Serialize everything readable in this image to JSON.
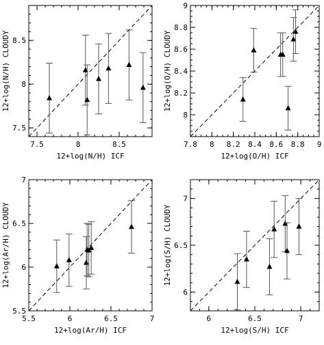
{
  "chart_data": [
    {
      "type": "scatter",
      "xlabel": "12+log(N/H) ICF",
      "ylabel": "12+log(N/H) CLOUDY",
      "xlim": [
        7.4,
        8.9
      ],
      "ylim": [
        7.4,
        8.9
      ],
      "xticks": [
        7.5,
        8,
        8.5
      ],
      "yticks": [
        7.5,
        8,
        8.5
      ],
      "xtick_labels": [
        "7.5",
        "8",
        "8.5"
      ],
      "ytick_labels": [
        "7.5",
        "8",
        "8.5"
      ],
      "minor_step": 0.1,
      "reference_line": "y = x (dashed)",
      "points": [
        {
          "x": 7.65,
          "y": 7.84,
          "y_low": 7.44,
          "y_high": 8.24
        },
        {
          "x": 8.09,
          "y": 8.16,
          "y_low": 7.76,
          "y_high": 8.56
        },
        {
          "x": 8.11,
          "y": 7.82,
          "y_low": 7.42,
          "y_high": 8.22
        },
        {
          "x": 8.25,
          "y": 8.06,
          "y_low": 7.66,
          "y_high": 8.46
        },
        {
          "x": 8.37,
          "y": 8.18,
          "y_low": 7.78,
          "y_high": 8.58
        },
        {
          "x": 8.62,
          "y": 8.22,
          "y_low": 7.82,
          "y_high": 8.62
        },
        {
          "x": 8.79,
          "y": 7.96,
          "y_low": 7.56,
          "y_high": 8.36
        }
      ]
    },
    {
      "type": "scatter",
      "xlabel": "12+log(O/H) ICF",
      "ylabel": "12+log(O/H) CLOUDY",
      "xlim": [
        7.8,
        9
      ],
      "ylim": [
        7.8,
        9
      ],
      "xticks": [
        7.8,
        8,
        8.2,
        8.4,
        8.6,
        8.8,
        9
      ],
      "yticks": [
        8,
        8.2,
        8.4,
        8.6,
        8.8,
        9
      ],
      "xtick_labels": [
        "7.8",
        "8",
        "8.2",
        "8.4",
        "8.6",
        "8.8",
        "9"
      ],
      "ytick_labels": [
        "8",
        "8.2",
        "8.4",
        "8.6",
        "8.8",
        "9"
      ],
      "minor_step": 0.05,
      "reference_line": "y = x (dashed)",
      "points": [
        {
          "x": 8.29,
          "y": 8.14,
          "y_low": 7.94,
          "y_high": 8.34
        },
        {
          "x": 8.39,
          "y": 8.59,
          "y_low": 8.39,
          "y_high": 8.79
        },
        {
          "x": 8.64,
          "y": 8.55,
          "y_low": 8.35,
          "y_high": 8.75
        },
        {
          "x": 8.66,
          "y": 8.55,
          "y_low": 8.35,
          "y_high": 8.75
        },
        {
          "x": 8.71,
          "y": 8.06,
          "y_low": 7.86,
          "y_high": 8.26
        },
        {
          "x": 8.76,
          "y": 8.69,
          "y_low": 8.49,
          "y_high": 8.89
        },
        {
          "x": 8.78,
          "y": 8.76,
          "y_low": 8.56,
          "y_high": 8.96
        }
      ]
    },
    {
      "type": "scatter",
      "xlabel": "12+log(Ar/H) ICF",
      "ylabel": "12+log(Ar/H) CLOUDY",
      "xlim": [
        5.5,
        7
      ],
      "ylim": [
        5.5,
        7
      ],
      "xticks": [
        5.5,
        6,
        6.5,
        7
      ],
      "yticks": [
        5.5,
        6,
        6.5,
        7
      ],
      "xtick_labels": [
        "5.5",
        "6",
        "6.5",
        "7"
      ],
      "ytick_labels": [
        "5.5",
        "6",
        "6.5",
        "7"
      ],
      "minor_step": 0.1,
      "reference_line": "y = x (dashed)",
      "points": [
        {
          "x": 5.84,
          "y": 6.01,
          "y_low": 5.71,
          "y_high": 6.31
        },
        {
          "x": 5.99,
          "y": 6.08,
          "y_low": 5.78,
          "y_high": 6.38
        },
        {
          "x": 6.2,
          "y": 6.05,
          "y_low": 5.75,
          "y_high": 6.35
        },
        {
          "x": 6.21,
          "y": 6.2,
          "y_low": 5.9,
          "y_high": 6.5
        },
        {
          "x": 6.23,
          "y": 6.19,
          "y_low": 5.89,
          "y_high": 6.49
        },
        {
          "x": 6.26,
          "y": 6.22,
          "y_low": 5.92,
          "y_high": 6.52
        },
        {
          "x": 6.75,
          "y": 6.46,
          "y_low": 6.16,
          "y_high": 6.76
        }
      ]
    },
    {
      "type": "scatter",
      "xlabel": "12+log(S/H) ICF",
      "ylabel": "12+log(S/H) CLOUDY",
      "xlim": [
        5.8,
        7.2
      ],
      "ylim": [
        5.8,
        7.2
      ],
      "xticks": [
        6,
        6.5,
        7
      ],
      "yticks": [
        6,
        6.5,
        7
      ],
      "xtick_labels": [
        "6",
        "6.5",
        "7"
      ],
      "ytick_labels": [
        "6",
        "6.5",
        "7"
      ],
      "minor_step": 0.1,
      "reference_line": "y = x (dashed)",
      "points": [
        {
          "x": 6.31,
          "y": 6.11,
          "y_low": 5.81,
          "y_high": 6.41
        },
        {
          "x": 6.41,
          "y": 6.35,
          "y_low": 6.05,
          "y_high": 6.65
        },
        {
          "x": 6.66,
          "y": 6.27,
          "y_low": 5.97,
          "y_high": 6.57
        },
        {
          "x": 6.71,
          "y": 6.67,
          "y_low": 6.37,
          "y_high": 6.97
        },
        {
          "x": 6.83,
          "y": 6.73,
          "y_low": 6.43,
          "y_high": 7.03
        },
        {
          "x": 6.85,
          "y": 6.44,
          "y_low": 6.14,
          "y_high": 6.74
        },
        {
          "x": 6.98,
          "y": 6.7,
          "y_low": 6.4,
          "y_high": 7.0
        }
      ]
    }
  ]
}
